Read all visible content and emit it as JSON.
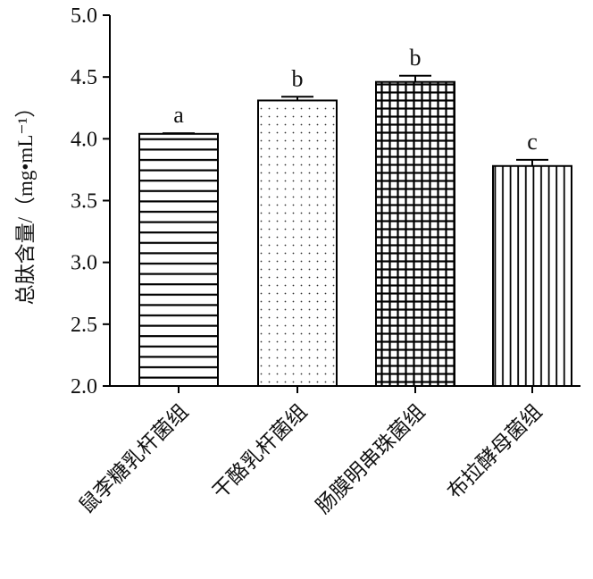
{
  "chart_data": {
    "type": "bar",
    "title": "",
    "xlabel": "",
    "ylabel": "总肽含量/（mg•mL⁻¹）",
    "ylim": [
      2.0,
      5.0
    ],
    "yticks": [
      "2.0",
      "2.5",
      "3.0",
      "3.5",
      "4.0",
      "4.5",
      "5.0"
    ],
    "grid": false,
    "categories": [
      "鼠李糖乳杆菌组",
      "干酪乳杆菌组",
      "肠膜明串珠菌组",
      "布拉酵母菌组"
    ],
    "values": [
      4.04,
      4.31,
      4.46,
      3.78
    ],
    "errors": [
      0.005,
      0.03,
      0.05,
      0.05
    ],
    "significance_labels": [
      "a",
      "b",
      "b",
      "c"
    ],
    "patterns": [
      "horizontal-lines",
      "dots",
      "grid",
      "vertical-lines"
    ]
  }
}
